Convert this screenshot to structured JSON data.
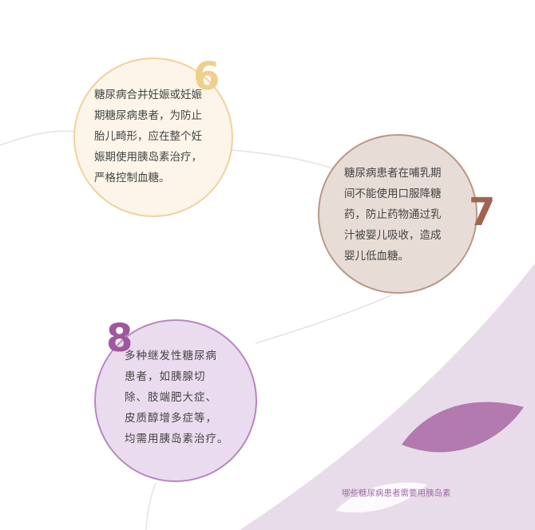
{
  "items": [
    {
      "number": "6",
      "text": "糖尿病合并妊娠或妊娠\n期糖尿病患者，为防止\n胎儿畸形，应在整个妊\n娠期使用胰岛素治疗，\n严格控制血糖。"
    },
    {
      "number": "7",
      "text": "糖尿病患者在哺乳期\n间不能使用口服降糖\n药，防止药物通过乳\n汁被婴儿吸收，造成\n婴儿低血糖。"
    },
    {
      "number": "8",
      "text": "多种继发性糖尿病\n患者，如胰腺切\n除、肢端肥大症、\n皮质醇增多症等，\n均需用胰岛素治疗。"
    }
  ],
  "footer": {
    "caption": "哪些糖尿病患者需要用胰岛素"
  },
  "colors": {
    "accent_6": "#f0cf8a",
    "accent_7": "#a06552",
    "accent_8": "#a0579f",
    "leaf": "#b27aaf",
    "wedge": "#e9dcea"
  }
}
